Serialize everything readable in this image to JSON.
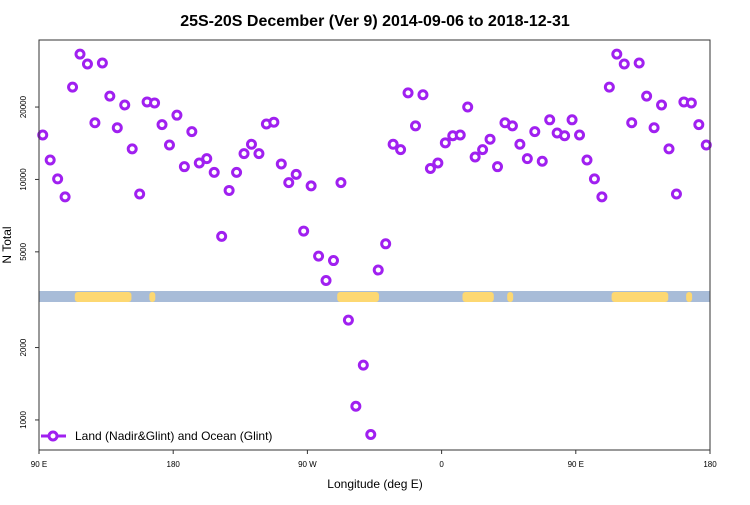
{
  "chart_data": {
    "type": "scatter",
    "title": "25S-20S December (Ver 9)   2014-09-06 to 2018-12-31",
    "xlabel": "Longitude (deg E)",
    "ylabel": "N Total",
    "yscale": "log",
    "xlim": [
      90,
      540
    ],
    "ylim": [
      750,
      38000
    ],
    "x_ticks": [
      {
        "value": 90,
        "label": "90 E"
      },
      {
        "value": 180,
        "label": "180"
      },
      {
        "value": 270,
        "label": "90 W"
      },
      {
        "value": 360,
        "label": "0"
      },
      {
        "value": 450,
        "label": "90 E"
      },
      {
        "value": 540,
        "label": "180"
      }
    ],
    "y_ticks": [
      {
        "value": 1000,
        "label": "1000"
      },
      {
        "value": 2000,
        "label": "2000"
      },
      {
        "value": 5000,
        "label": "5000"
      },
      {
        "value": 10000,
        "label": "10000"
      },
      {
        "value": 20000,
        "label": "20000"
      }
    ],
    "legend": {
      "placement": "bottom-left",
      "label": "Land (Nadir&Glint) and Ocean (Glint)"
    },
    "series": [
      {
        "name": "Land (Nadir&Glint) and Ocean (Glint)",
        "color": "#a020f0",
        "x_start": 92.5,
        "x_step": 5,
        "values": [
          15300,
          12050,
          10050,
          8460,
          24200,
          33200,
          30200,
          17200,
          30500,
          22200,
          16400,
          20400,
          13400,
          8700,
          21000,
          20800,
          16900,
          13900,
          18500,
          11300,
          15800,
          11700,
          12200,
          10700,
          5800,
          9000,
          10700,
          12800,
          14000,
          12800,
          17000,
          17300,
          11600,
          9700,
          10500,
          6100,
          9400,
          4800,
          3800,
          4600,
          9700,
          2600,
          1140,
          1690,
          870,
          4200,
          5400,
          14000,
          13300,
          22900,
          16700,
          22500,
          11100,
          11700,
          14200,
          15200,
          15300,
          20000,
          12400,
          13300,
          14700,
          11300,
          17200,
          16700,
          14000,
          12200,
          15800,
          11900,
          17700,
          15600,
          15200,
          17700,
          15300,
          12050,
          10050,
          8460,
          24200,
          33200,
          30200,
          17200,
          30500,
          22200,
          16400,
          20400,
          13400,
          8700,
          21000,
          20800,
          16900,
          13900
        ]
      }
    ],
    "map_strip": {
      "ocean_color": "#a8bcd8",
      "land_color": "#fdd872",
      "land_lon_ranges": [
        [
          114,
          152
        ],
        [
          164,
          168
        ],
        [
          290,
          318
        ],
        [
          374,
          395
        ],
        [
          404,
          408
        ],
        [
          474,
          512
        ],
        [
          524,
          528
        ]
      ]
    }
  }
}
